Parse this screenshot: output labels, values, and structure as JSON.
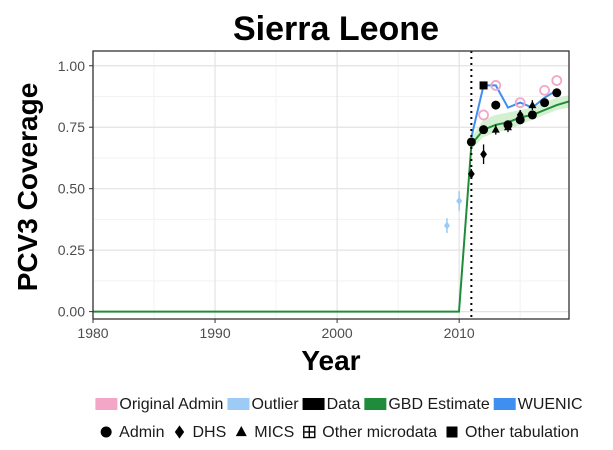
{
  "chart_data": {
    "type": "line",
    "title": "Sierra Leone",
    "xlabel": "Year",
    "ylabel": "PCV3 Coverage",
    "xlim": [
      1980,
      2019
    ],
    "ylim": [
      -0.03,
      1.06
    ],
    "x_ticks": [
      1980,
      1990,
      2000,
      2010
    ],
    "y_ticks": [
      0.0,
      0.25,
      0.5,
      0.75,
      1.0
    ],
    "x_tick_labels": [
      "1980",
      "1990",
      "2000",
      "2010"
    ],
    "y_tick_labels": [
      "0.00",
      "0.25",
      "0.50",
      "0.75",
      "1.00"
    ],
    "grid": true,
    "vline": {
      "x": 2011,
      "style": "dotted"
    },
    "colors": {
      "original_admin": "#f4a6c8",
      "outlier": "#9ccbf5",
      "data": "#000000",
      "gbd_estimate": "#1e8c3a",
      "gbd_band": "#c8ecc6",
      "wuenic": "#3f8ff0"
    },
    "gbd_estimate": {
      "x": [
        1980,
        1990,
        2000,
        2009.99,
        2011,
        2012,
        2013,
        2014,
        2015,
        2016,
        2017,
        2018,
        2019
      ],
      "y": [
        0.0,
        0.0,
        0.0,
        0.0,
        0.68,
        0.74,
        0.76,
        0.77,
        0.79,
        0.8,
        0.82,
        0.84,
        0.855
      ],
      "lower": [
        0.0,
        0.0,
        0.0,
        0.0,
        0.66,
        0.71,
        0.73,
        0.74,
        0.76,
        0.78,
        0.8,
        0.82,
        0.83
      ],
      "upper": [
        0.0,
        0.0,
        0.0,
        0.0,
        0.71,
        0.78,
        0.8,
        0.81,
        0.82,
        0.83,
        0.85,
        0.87,
        0.88
      ]
    },
    "wuenic": {
      "x": [
        2011,
        2012,
        2013,
        2014,
        2015,
        2016,
        2017,
        2018
      ],
      "y": [
        0.71,
        0.92,
        0.92,
        0.83,
        0.85,
        0.83,
        0.87,
        0.9
      ]
    },
    "original_admin": [
      {
        "x": 2012,
        "y": 0.8
      },
      {
        "x": 2013,
        "y": 0.92
      },
      {
        "x": 2015,
        "y": 0.85
      },
      {
        "x": 2017,
        "y": 0.9
      },
      {
        "x": 2018,
        "y": 0.94
      }
    ],
    "outliers": [
      {
        "x": 2009,
        "y": 0.35,
        "err": 0.03,
        "shape": "diamond"
      },
      {
        "x": 2010,
        "y": 0.45,
        "err": 0.04,
        "shape": "diamond"
      }
    ],
    "points": [
      {
        "x": 2011,
        "y": 0.69,
        "shape": "circle"
      },
      {
        "x": 2012,
        "y": 0.74,
        "shape": "circle"
      },
      {
        "x": 2013,
        "y": 0.84,
        "shape": "circle"
      },
      {
        "x": 2014,
        "y": 0.76,
        "shape": "circle"
      },
      {
        "x": 2015,
        "y": 0.78,
        "shape": "circle"
      },
      {
        "x": 2016,
        "y": 0.8,
        "shape": "circle"
      },
      {
        "x": 2017,
        "y": 0.85,
        "shape": "circle"
      },
      {
        "x": 2018,
        "y": 0.89,
        "shape": "circle"
      },
      {
        "x": 2012,
        "y": 0.92,
        "shape": "square"
      },
      {
        "x": 2011,
        "y": 0.56,
        "shape": "diamond",
        "err": 0.02
      },
      {
        "x": 2012,
        "y": 0.64,
        "shape": "diamond",
        "err": 0.04
      },
      {
        "x": 2013,
        "y": 0.74,
        "shape": "triangle",
        "err": 0.02
      },
      {
        "x": 2014,
        "y": 0.75,
        "shape": "triangle",
        "err": 0.02
      },
      {
        "x": 2015,
        "y": 0.8,
        "shape": "diamond",
        "err": 0.02
      },
      {
        "x": 2016,
        "y": 0.84,
        "shape": "triangle",
        "err": 0.02
      }
    ],
    "legend_colors": [
      {
        "label": "Original Admin",
        "color": "#f4a6c8"
      },
      {
        "label": "Outlier",
        "color": "#9ccbf5"
      },
      {
        "label": "Data",
        "color": "#000000"
      },
      {
        "label": "GBD Estimate",
        "color": "#1e8c3a"
      },
      {
        "label": "WUENIC",
        "color": "#3f8ff0"
      }
    ],
    "legend_shapes": [
      {
        "label": "Admin",
        "shape": "circle"
      },
      {
        "label": "DHS",
        "shape": "diamond"
      },
      {
        "label": "MICS",
        "shape": "triangle"
      },
      {
        "label": "Other microdata",
        "shape": "boxplus"
      },
      {
        "label": "Other tabulation",
        "shape": "square"
      }
    ]
  }
}
